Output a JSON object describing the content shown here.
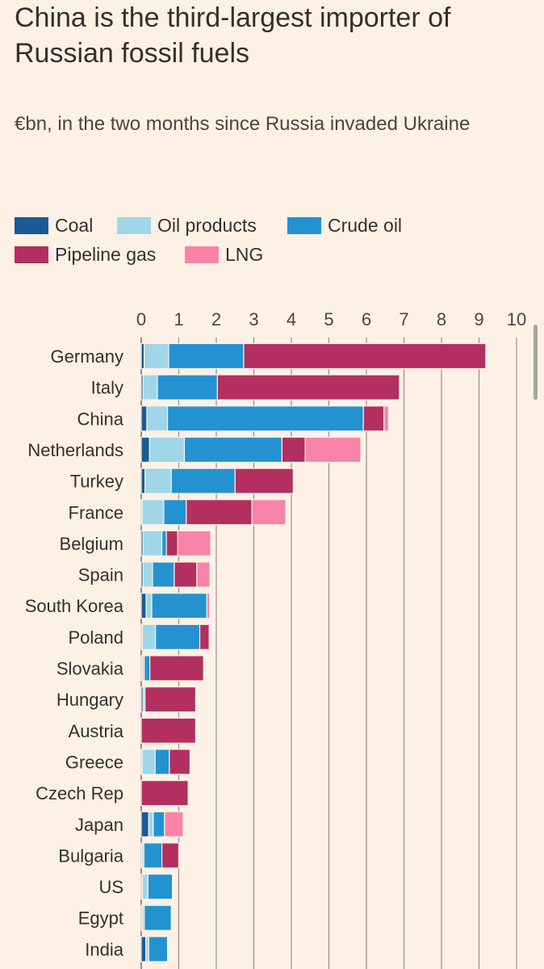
{
  "title": "China is the third-largest importer of Russian fossil fuels",
  "subtitle": "€bn, in the two months since Russia invaded Ukraine",
  "legend": [
    {
      "name": "Coal",
      "color": "#1a5a96"
    },
    {
      "name": "Oil products",
      "color": "#9fd6e8"
    },
    {
      "name": "Crude oil",
      "color": "#2293d0"
    },
    {
      "name": "Pipeline gas",
      "color": "#b22f5f"
    },
    {
      "name": "LNG",
      "color": "#f784a8"
    }
  ],
  "chart_data": {
    "type": "bar",
    "orientation": "horizontal",
    "stacked": true,
    "xlim": [
      0,
      10
    ],
    "xticks": [
      "0",
      "1",
      "2",
      "3",
      "4",
      "5",
      "6",
      "7",
      "8",
      "9",
      "10"
    ],
    "grid": true,
    "legend_position": "top",
    "categories": [
      "Germany",
      "Italy",
      "China",
      "Netherlands",
      "Turkey",
      "France",
      "Belgium",
      "Spain",
      "South Korea",
      "Poland",
      "Slovakia",
      "Hungary",
      "Austria",
      "Greece",
      "Czech Rep",
      "Japan",
      "Bulgaria",
      "US",
      "Egypt",
      "India"
    ],
    "series": [
      {
        "name": "Coal",
        "color": "#1a5a96",
        "values": [
          0.08,
          0.05,
          0.15,
          0.22,
          0.1,
          0.02,
          0.05,
          0.05,
          0.13,
          0.03,
          0.03,
          0.05,
          0.0,
          0.02,
          0.0,
          0.2,
          0.02,
          0.03,
          0.03,
          0.12
        ]
      },
      {
        "name": "Oil products",
        "color": "#9fd6e8",
        "values": [
          0.65,
          0.38,
          0.55,
          0.93,
          0.7,
          0.58,
          0.5,
          0.25,
          0.15,
          0.35,
          0.05,
          0.05,
          0.0,
          0.35,
          0.0,
          0.12,
          0.05,
          0.15,
          0.05,
          0.08
        ]
      },
      {
        "name": "Crude oil",
        "color": "#2293d0",
        "values": [
          2.0,
          1.6,
          5.22,
          2.6,
          1.7,
          0.6,
          0.12,
          0.58,
          1.47,
          1.18,
          0.15,
          0.0,
          0.0,
          0.38,
          0.0,
          0.3,
          0.48,
          0.65,
          0.72,
          0.5
        ]
      },
      {
        "name": "Pipeline gas",
        "color": "#b22f5f",
        "values": [
          6.45,
          4.85,
          0.55,
          0.62,
          1.55,
          1.75,
          0.3,
          0.6,
          0.0,
          0.25,
          1.43,
          1.35,
          1.45,
          0.55,
          1.25,
          0.0,
          0.45,
          0.0,
          0.0,
          0.0
        ]
      },
      {
        "name": "LNG",
        "color": "#f784a8",
        "values": [
          0.0,
          0.0,
          0.12,
          1.48,
          0.0,
          0.9,
          0.88,
          0.35,
          0.07,
          0.0,
          0.0,
          0.0,
          0.0,
          0.0,
          0.0,
          0.5,
          0.0,
          0.0,
          0.0,
          0.0
        ]
      }
    ]
  }
}
